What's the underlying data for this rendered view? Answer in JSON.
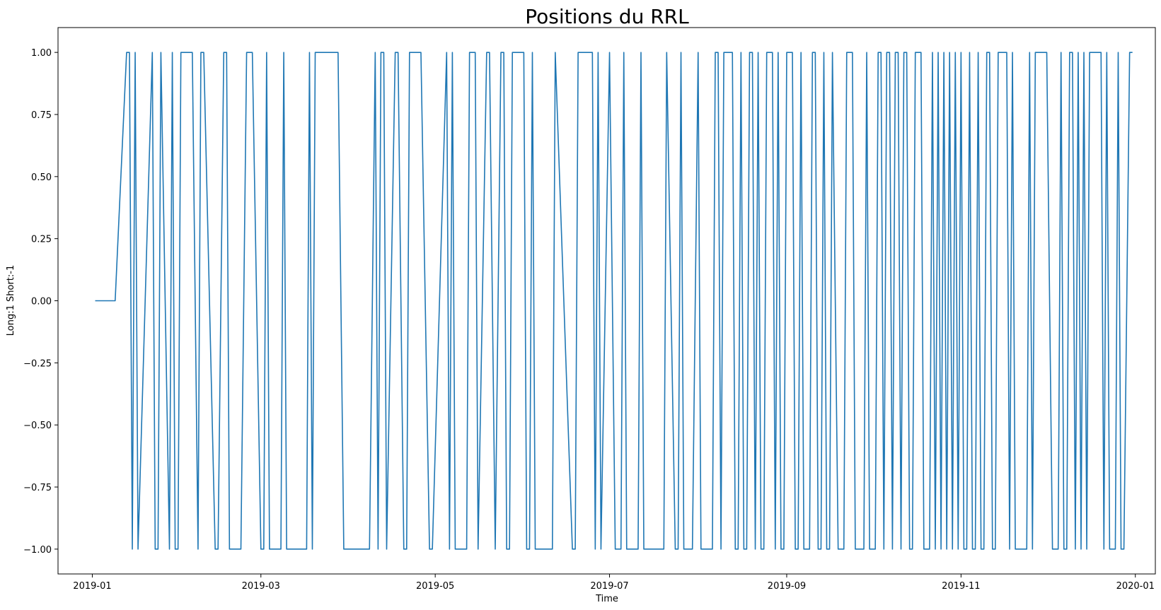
{
  "chart_data": {
    "type": "line",
    "title": "Positions du RRL",
    "xlabel": "Time",
    "ylabel": "Long:1 Short:-1",
    "xlim": [
      "2018-12-20",
      "2020-01-08"
    ],
    "ylim": [
      -1.1,
      1.1
    ],
    "yticks": [
      -1.0,
      -0.75,
      -0.5,
      -0.25,
      0.0,
      0.25,
      0.5,
      0.75,
      1.0
    ],
    "ytick_labels": [
      "−1.00",
      "−0.75",
      "−0.50",
      "−0.25",
      "0.00",
      "0.25",
      "0.50",
      "0.75",
      "1.00"
    ],
    "xticks": [
      "2019-01-01",
      "2019-03-01",
      "2019-05-01",
      "2019-07-01",
      "2019-09-01",
      "2019-11-01",
      "2020-01-01"
    ],
    "xtick_labels": [
      "2019-01",
      "2019-03",
      "2019-05",
      "2019-07",
      "2019-09",
      "2019-11",
      "2020-01"
    ],
    "grid": false,
    "series": [
      {
        "color": "#1f77b4",
        "points": [
          [
            "2019-01-02",
            0
          ],
          [
            "2019-01-09",
            0
          ],
          [
            "2019-01-13",
            1
          ],
          [
            "2019-01-14",
            1
          ],
          [
            "2019-01-15",
            -1
          ],
          [
            "2019-01-16",
            1
          ],
          [
            "2019-01-17",
            -1
          ],
          [
            "2019-01-22",
            1
          ],
          [
            "2019-01-23",
            -1
          ],
          [
            "2019-01-24",
            -1
          ],
          [
            "2019-01-25",
            1
          ],
          [
            "2019-01-28",
            -1
          ],
          [
            "2019-01-29",
            1
          ],
          [
            "2019-01-30",
            -1
          ],
          [
            "2019-01-31",
            -1
          ],
          [
            "2019-02-01",
            1
          ],
          [
            "2019-02-05",
            1
          ],
          [
            "2019-02-07",
            -1
          ],
          [
            "2019-02-08",
            1
          ],
          [
            "2019-02-09",
            1
          ],
          [
            "2019-02-13",
            -1
          ],
          [
            "2019-02-14",
            -1
          ],
          [
            "2019-02-16",
            1
          ],
          [
            "2019-02-17",
            1
          ],
          [
            "2019-02-18",
            -1
          ],
          [
            "2019-02-22",
            -1
          ],
          [
            "2019-02-24",
            1
          ],
          [
            "2019-02-26",
            1
          ],
          [
            "2019-03-01",
            -1
          ],
          [
            "2019-03-02",
            -1
          ],
          [
            "2019-03-03",
            1
          ],
          [
            "2019-03-04",
            -1
          ],
          [
            "2019-03-08",
            -1
          ],
          [
            "2019-03-09",
            1
          ],
          [
            "2019-03-10",
            -1
          ],
          [
            "2019-03-17",
            -1
          ],
          [
            "2019-03-18",
            1
          ],
          [
            "2019-03-19",
            -1
          ],
          [
            "2019-03-20",
            1
          ],
          [
            "2019-03-28",
            1
          ],
          [
            "2019-03-30",
            -1
          ],
          [
            "2019-04-08",
            -1
          ],
          [
            "2019-04-10",
            1
          ],
          [
            "2019-04-11",
            -1
          ],
          [
            "2019-04-12",
            1
          ],
          [
            "2019-04-13",
            1
          ],
          [
            "2019-04-14",
            -1
          ],
          [
            "2019-04-17",
            1
          ],
          [
            "2019-04-18",
            1
          ],
          [
            "2019-04-20",
            -1
          ],
          [
            "2019-04-21",
            -1
          ],
          [
            "2019-04-22",
            1
          ],
          [
            "2019-04-26",
            1
          ],
          [
            "2019-04-29",
            -1
          ],
          [
            "2019-04-30",
            -1
          ],
          [
            "2019-05-05",
            1
          ],
          [
            "2019-05-06",
            -1
          ],
          [
            "2019-05-07",
            1
          ],
          [
            "2019-05-08",
            -1
          ],
          [
            "2019-05-12",
            -1
          ],
          [
            "2019-05-13",
            1
          ],
          [
            "2019-05-15",
            1
          ],
          [
            "2019-05-16",
            -1
          ],
          [
            "2019-05-19",
            1
          ],
          [
            "2019-05-20",
            1
          ],
          [
            "2019-05-22",
            -1
          ],
          [
            "2019-05-24",
            1
          ],
          [
            "2019-05-25",
            1
          ],
          [
            "2019-05-26",
            -1
          ],
          [
            "2019-05-27",
            -1
          ],
          [
            "2019-05-28",
            1
          ],
          [
            "2019-06-01",
            1
          ],
          [
            "2019-06-02",
            -1
          ],
          [
            "2019-06-03",
            -1
          ],
          [
            "2019-06-04",
            1
          ],
          [
            "2019-06-05",
            -1
          ],
          [
            "2019-06-11",
            -1
          ],
          [
            "2019-06-12",
            1
          ],
          [
            "2019-06-18",
            -1
          ],
          [
            "2019-06-19",
            -1
          ],
          [
            "2019-06-20",
            1
          ],
          [
            "2019-06-25",
            1
          ],
          [
            "2019-06-26",
            -1
          ],
          [
            "2019-06-27",
            1
          ],
          [
            "2019-06-28",
            -1
          ],
          [
            "2019-07-01",
            1
          ],
          [
            "2019-07-03",
            -1
          ],
          [
            "2019-07-05",
            -1
          ],
          [
            "2019-07-06",
            1
          ],
          [
            "2019-07-07",
            -1
          ],
          [
            "2019-07-11",
            -1
          ],
          [
            "2019-07-12",
            1
          ],
          [
            "2019-07-13",
            -1
          ],
          [
            "2019-07-20",
            -1
          ],
          [
            "2019-07-21",
            1
          ],
          [
            "2019-07-24",
            -1
          ],
          [
            "2019-07-25",
            -1
          ],
          [
            "2019-07-26",
            1
          ],
          [
            "2019-07-27",
            -1
          ],
          [
            "2019-07-30",
            -1
          ],
          [
            "2019-08-01",
            1
          ],
          [
            "2019-08-02",
            -1
          ],
          [
            "2019-08-06",
            -1
          ],
          [
            "2019-08-07",
            1
          ],
          [
            "2019-08-08",
            1
          ],
          [
            "2019-08-09",
            -1
          ],
          [
            "2019-08-10",
            1
          ],
          [
            "2019-08-13",
            1
          ],
          [
            "2019-08-14",
            -1
          ],
          [
            "2019-08-15",
            -1
          ],
          [
            "2019-08-16",
            1
          ],
          [
            "2019-08-17",
            -1
          ],
          [
            "2019-08-18",
            -1
          ],
          [
            "2019-08-19",
            1
          ],
          [
            "2019-08-20",
            1
          ],
          [
            "2019-08-21",
            -1
          ],
          [
            "2019-08-22",
            1
          ],
          [
            "2019-08-23",
            -1
          ],
          [
            "2019-08-24",
            -1
          ],
          [
            "2019-08-25",
            1
          ],
          [
            "2019-08-27",
            1
          ],
          [
            "2019-08-28",
            -1
          ],
          [
            "2019-08-29",
            1
          ],
          [
            "2019-08-30",
            -1
          ],
          [
            "2019-08-31",
            -1
          ],
          [
            "2019-09-01",
            1
          ],
          [
            "2019-09-03",
            1
          ],
          [
            "2019-09-04",
            -1
          ],
          [
            "2019-09-05",
            -1
          ],
          [
            "2019-09-06",
            1
          ],
          [
            "2019-09-07",
            -1
          ],
          [
            "2019-09-09",
            -1
          ],
          [
            "2019-09-10",
            1
          ],
          [
            "2019-09-11",
            1
          ],
          [
            "2019-09-12",
            -1
          ],
          [
            "2019-09-13",
            -1
          ],
          [
            "2019-09-14",
            1
          ],
          [
            "2019-09-15",
            -1
          ],
          [
            "2019-09-16",
            -1
          ],
          [
            "2019-09-17",
            1
          ],
          [
            "2019-09-19",
            -1
          ],
          [
            "2019-09-21",
            -1
          ],
          [
            "2019-09-22",
            1
          ],
          [
            "2019-09-24",
            1
          ],
          [
            "2019-09-25",
            -1
          ],
          [
            "2019-09-28",
            -1
          ],
          [
            "2019-09-29",
            1
          ],
          [
            "2019-09-30",
            -1
          ],
          [
            "2019-10-02",
            -1
          ],
          [
            "2019-10-03",
            1
          ],
          [
            "2019-10-04",
            1
          ],
          [
            "2019-10-05",
            -1
          ],
          [
            "2019-10-06",
            1
          ],
          [
            "2019-10-07",
            1
          ],
          [
            "2019-10-08",
            -1
          ],
          [
            "2019-10-09",
            1
          ],
          [
            "2019-10-10",
            1
          ],
          [
            "2019-10-11",
            -1
          ],
          [
            "2019-10-12",
            1
          ],
          [
            "2019-10-13",
            1
          ],
          [
            "2019-10-14",
            -1
          ],
          [
            "2019-10-15",
            -1
          ],
          [
            "2019-10-16",
            1
          ],
          [
            "2019-10-18",
            1
          ],
          [
            "2019-10-19",
            -1
          ],
          [
            "2019-10-21",
            -1
          ],
          [
            "2019-10-22",
            1
          ],
          [
            "2019-10-23",
            -1
          ],
          [
            "2019-10-24",
            1
          ],
          [
            "2019-10-25",
            -1
          ],
          [
            "2019-10-26",
            1
          ],
          [
            "2019-10-27",
            -1
          ],
          [
            "2019-10-28",
            1
          ],
          [
            "2019-10-29",
            -1
          ],
          [
            "2019-10-30",
            1
          ],
          [
            "2019-10-31",
            -1
          ],
          [
            "2019-11-01",
            1
          ],
          [
            "2019-11-02",
            -1
          ],
          [
            "2019-11-03",
            -1
          ],
          [
            "2019-11-04",
            1
          ],
          [
            "2019-11-05",
            -1
          ],
          [
            "2019-11-06",
            -1
          ],
          [
            "2019-11-07",
            1
          ],
          [
            "2019-11-08",
            -1
          ],
          [
            "2019-11-09",
            -1
          ],
          [
            "2019-11-10",
            1
          ],
          [
            "2019-11-11",
            1
          ],
          [
            "2019-11-12",
            -1
          ],
          [
            "2019-11-13",
            -1
          ],
          [
            "2019-11-14",
            1
          ],
          [
            "2019-11-17",
            1
          ],
          [
            "2019-11-18",
            -1
          ],
          [
            "2019-11-19",
            1
          ],
          [
            "2019-11-20",
            -1
          ],
          [
            "2019-11-24",
            -1
          ],
          [
            "2019-11-25",
            1
          ],
          [
            "2019-11-26",
            -1
          ],
          [
            "2019-11-27",
            1
          ],
          [
            "2019-11-28",
            1
          ],
          [
            "2019-12-01",
            1
          ],
          [
            "2019-12-03",
            -1
          ],
          [
            "2019-12-05",
            -1
          ],
          [
            "2019-12-06",
            1
          ],
          [
            "2019-12-07",
            -1
          ],
          [
            "2019-12-08",
            -1
          ],
          [
            "2019-12-09",
            1
          ],
          [
            "2019-12-10",
            1
          ],
          [
            "2019-12-11",
            -1
          ],
          [
            "2019-12-12",
            1
          ],
          [
            "2019-12-13",
            -1
          ],
          [
            "2019-12-14",
            1
          ],
          [
            "2019-12-15",
            -1
          ],
          [
            "2019-12-16",
            1
          ],
          [
            "2019-12-20",
            1
          ],
          [
            "2019-12-21",
            -1
          ],
          [
            "2019-12-22",
            1
          ],
          [
            "2019-12-23",
            -1
          ],
          [
            "2019-12-25",
            -1
          ],
          [
            "2019-12-26",
            1
          ],
          [
            "2019-12-27",
            -1
          ],
          [
            "2019-12-28",
            -1
          ],
          [
            "2019-12-30",
            1
          ],
          [
            "2019-12-31",
            1
          ]
        ]
      }
    ]
  }
}
